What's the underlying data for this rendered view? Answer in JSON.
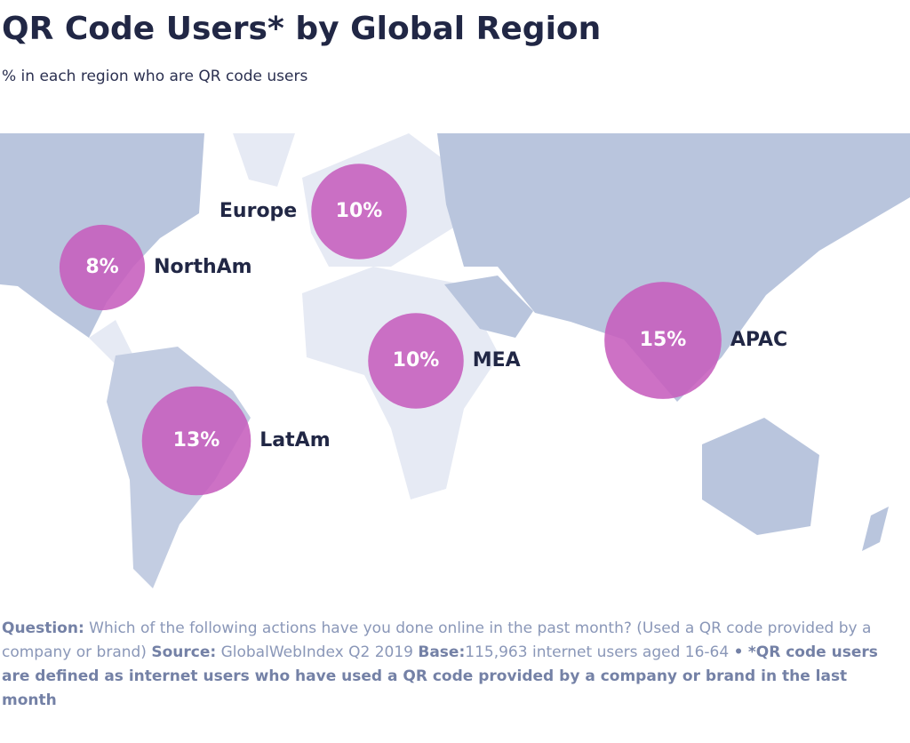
{
  "chart_data": {
    "type": "bubble",
    "title": "QR Code Users* by Global Region",
    "subtitle": "% in each region who are QR code users",
    "categories": [
      "Europe",
      "NorthAm",
      "MEA",
      "APAC",
      "LatAm"
    ],
    "values": [
      10,
      8,
      10,
      15,
      13
    ],
    "value_labels": [
      "10%",
      "8%",
      "10%",
      "15%",
      "13%"
    ],
    "color": "#c65dbd"
  },
  "footer": {
    "question_label": "Question:",
    "question": "Which of the following actions have you done online in the past month? (Used a QR code provided by a company or brand)",
    "source_label": "Source:",
    "source": "GlobalWebIndex Q2 2019",
    "base_label": "Base:",
    "base": "115,963 internet users aged 16-64",
    "separator": "•",
    "note": "*QR code users are defined as internet users who have used a QR code provided by a company or brand in the last month"
  }
}
